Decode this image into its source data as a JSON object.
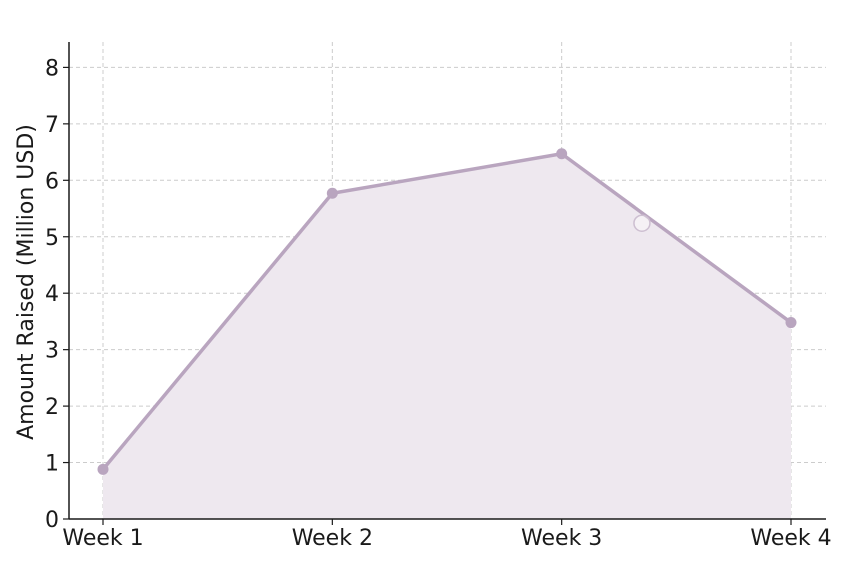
{
  "chart_data": {
    "type": "area",
    "title": "",
    "xlabel": "",
    "ylabel": "Amount Raised (Million USD)",
    "categories": [
      "Week 1",
      "Week 2",
      "Week 3",
      "Week 4"
    ],
    "series": [
      {
        "values": [
          0.88,
          5.77,
          6.47,
          3.48
        ]
      }
    ],
    "ylim": [
      0,
      8.45
    ],
    "yticks": [
      0,
      1,
      2,
      3,
      4,
      5,
      6,
      7,
      8
    ],
    "grid": true,
    "legend": "none",
    "annotations": [
      {
        "type": "hollow-marker",
        "x_between": [
          "Week 3",
          "Week 4"
        ],
        "x_fraction": 0.35,
        "y": 5.24
      }
    ]
  },
  "colors": {
    "line": "#b9a5bf",
    "marker": "#b9a5bf",
    "fill": "#eee8ef",
    "grid": "#cccccc",
    "axis": "#1a1a1a",
    "annotation": "#cdbfd1"
  }
}
